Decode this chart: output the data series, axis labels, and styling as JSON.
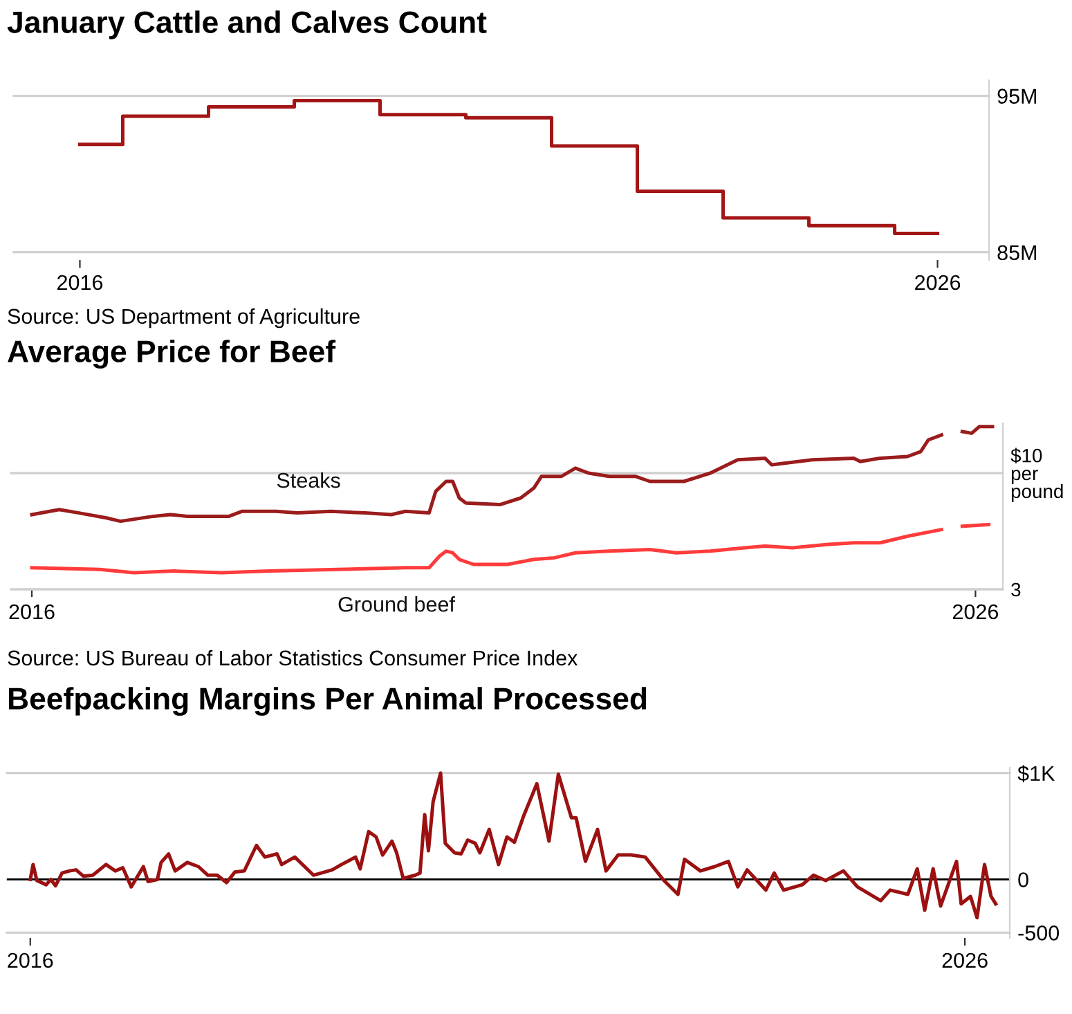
{
  "chart_data": [
    {
      "type": "step",
      "title": "January Cattle and Calves Count",
      "x": [
        2016,
        2017,
        2018,
        2019,
        2020,
        2021,
        2022,
        2023,
        2024,
        2025,
        2026
      ],
      "series": [
        {
          "color": "#a31515",
          "values": [
            91.9,
            93.7,
            94.3,
            94.7,
            93.8,
            93.6,
            91.8,
            88.9,
            87.2,
            86.7,
            86.2
          ]
        }
      ],
      "xlim": [
        2015.23,
        2026.6
      ],
      "xticks": [
        2016,
        2026
      ],
      "ylim": [
        84.5,
        96
      ],
      "yticks": [
        {
          "value": 85,
          "label": "85M"
        },
        {
          "value": 95,
          "label": "95M"
        }
      ],
      "grid": "y",
      "legend": false,
      "annotations": [
        "Source: US Department of Agriculture"
      ]
    },
    {
      "type": "line",
      "title": "Average Price for Beef",
      "series": [
        {
          "name": "Steaks",
          "color": "#9b1c1c",
          "x": [
            2016.0,
            2016.29,
            2016.5,
            2016.79,
            2016.94,
            2017.29,
            2017.47,
            2017.65,
            2018.09,
            2018.23,
            2018.59,
            2018.81,
            2019.17,
            2019.53,
            2019.81,
            2019.96,
            2020.21,
            2020.28,
            2020.39,
            2020.46,
            2020.53,
            2020.6,
            2020.96,
            2021.18,
            2021.32,
            2021.4,
            2021.61,
            2021.76,
            2021.9,
            2022.12,
            2022.4,
            2022.55,
            2022.91,
            2023.19,
            2023.48,
            2023.77,
            2023.84,
            2024.27,
            2024.71,
            2024.78,
            2024.99,
            2025.28,
            2025.42,
            2025.5,
            2025.64,
            2025.75,
            2025.86,
            2025.96,
            2026.04,
            2026.18
          ],
          "values": [
            7.5,
            7.8,
            7.6,
            7.3,
            7.1,
            7.4,
            7.5,
            7.4,
            7.4,
            7.7,
            7.7,
            7.6,
            7.7,
            7.6,
            7.5,
            7.7,
            7.6,
            8.9,
            9.5,
            9.5,
            8.5,
            8.2,
            8.1,
            8.5,
            9.1,
            9.8,
            9.8,
            10.3,
            10.0,
            9.8,
            9.8,
            9.5,
            9.5,
            10.0,
            10.8,
            10.9,
            10.5,
            10.8,
            10.9,
            10.7,
            10.9,
            11.0,
            11.3,
            12.0,
            12.3,
            null,
            12.5,
            12.4,
            12.8,
            12.8
          ]
        },
        {
          "name": "Ground beef",
          "color": "#ff3b3b",
          "x": [
            2016.0,
            2016.72,
            2017.08,
            2017.51,
            2018.01,
            2018.52,
            2019.24,
            2019.96,
            2020.21,
            2020.32,
            2020.39,
            2020.46,
            2020.53,
            2020.68,
            2021.04,
            2021.32,
            2021.54,
            2021.76,
            2022.12,
            2022.55,
            2022.83,
            2023.19,
            2023.55,
            2023.77,
            2024.06,
            2024.42,
            2024.71,
            2024.99,
            2025.28,
            2025.64,
            2025.75,
            2025.86,
            2026.14
          ],
          "values": [
            4.3,
            4.2,
            4.0,
            4.1,
            4.0,
            4.1,
            4.2,
            4.3,
            4.3,
            5.0,
            5.3,
            5.2,
            4.8,
            4.5,
            4.5,
            4.8,
            4.9,
            5.2,
            5.3,
            5.4,
            5.2,
            5.3,
            5.5,
            5.6,
            5.5,
            5.7,
            5.8,
            5.8,
            6.2,
            6.6,
            null,
            6.8,
            6.9
          ]
        }
      ],
      "xlim": [
        2015.78,
        2026.29
      ],
      "xticks": [
        2016,
        2026
      ],
      "ylim": [
        3,
        13
      ],
      "yticks": [
        3,
        {
          "value": 10,
          "label": "$10\nper\npound"
        }
      ],
      "grid": "y",
      "legend": false,
      "annotations": [
        "Source: US Bureau of Labor Statistics Consumer Price Index"
      ]
    },
    {
      "type": "line",
      "title": "Beefpacking Margins Per Animal Processed",
      "series": [
        {
          "color": "#9b1111",
          "x": [
            2016.0,
            2016.03,
            2016.07,
            2016.17,
            2016.22,
            2016.27,
            2016.34,
            2016.42,
            2016.49,
            2016.57,
            2016.67,
            2016.81,
            2016.91,
            2016.99,
            2017.08,
            2017.21,
            2017.26,
            2017.36,
            2017.4,
            2017.48,
            2017.55,
            2017.68,
            2017.8,
            2017.9,
            2018.0,
            2018.1,
            2018.19,
            2018.29,
            2018.42,
            2018.51,
            2018.64,
            2018.69,
            2018.83,
            2019.03,
            2019.23,
            2019.33,
            2019.48,
            2019.53,
            2019.62,
            2019.7,
            2019.77,
            2019.87,
            2019.92,
            2019.99,
            2020.12,
            2020.17,
            2020.22,
            2020.26,
            2020.31,
            2020.39,
            2020.44,
            2020.54,
            2020.61,
            2020.68,
            2020.76,
            2020.81,
            2020.91,
            2021.01,
            2021.1,
            2021.18,
            2021.28,
            2021.42,
            2021.55,
            2021.65,
            2021.79,
            2021.84,
            2021.94,
            2022.07,
            2022.16,
            2022.29,
            2022.43,
            2022.58,
            2022.78,
            2022.93,
            2023.0,
            2023.17,
            2023.32,
            2023.47,
            2023.57,
            2023.67,
            2023.87,
            2023.96,
            2024.06,
            2024.26,
            2024.38,
            2024.51,
            2024.7,
            2024.85,
            2025.1,
            2025.2,
            2025.39,
            2025.49,
            2025.57,
            2025.66,
            2025.74,
            2025.91,
            2025.96,
            2026.06,
            2026.13,
            2026.21,
            2026.28,
            2026.33
          ],
          "values": [
            0,
            140,
            -10,
            -50,
            0,
            -60,
            60,
            80,
            90,
            30,
            40,
            140,
            80,
            110,
            -70,
            120,
            -20,
            0,
            160,
            240,
            80,
            160,
            120,
            40,
            40,
            -30,
            70,
            80,
            320,
            210,
            240,
            140,
            210,
            40,
            90,
            140,
            210,
            100,
            450,
            400,
            230,
            360,
            250,
            10,
            40,
            60,
            610,
            270,
            730,
            1000,
            340,
            250,
            240,
            370,
            340,
            250,
            470,
            140,
            400,
            350,
            600,
            900,
            360,
            990,
            580,
            580,
            170,
            470,
            80,
            230,
            230,
            210,
            -10,
            -140,
            190,
            80,
            120,
            170,
            -70,
            90,
            -100,
            60,
            -100,
            -50,
            40,
            -10,
            80,
            -70,
            -200,
            -100,
            -140,
            100,
            -290,
            100,
            -250,
            170,
            -230,
            -160,
            -360,
            140,
            -160,
            -230
          ]
        }
      ],
      "xlim": [
        2015.75,
        2026.48
      ],
      "xticks": [
        2016,
        2026
      ],
      "ylim": [
        -550,
        1050
      ],
      "yticks": [
        -500,
        0,
        {
          "value": 1000,
          "label": "$1K"
        }
      ],
      "grid": "y",
      "legend": false,
      "ref_lines": [
        {
          "axis": "y",
          "value": 0,
          "color": "#000000"
        }
      ]
    }
  ]
}
